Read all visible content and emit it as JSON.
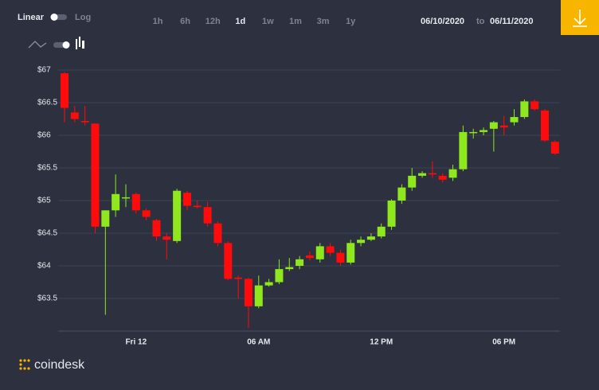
{
  "controls": {
    "scale": [
      "Linear",
      "Log"
    ],
    "ranges": [
      "1h",
      "6h",
      "12h",
      "1d",
      "1w",
      "1m",
      "3m",
      "1y"
    ],
    "active_range": "1d",
    "date_from": "06/10/2020",
    "date_sep": "to",
    "date_to": "06/11/2020"
  },
  "brand": "coindesk",
  "chart_data": {
    "type": "candlestick",
    "categories": [
      null,
      null,
      null,
      null,
      null,
      null,
      null,
      "Fri 12",
      null,
      null,
      null,
      null,
      null,
      null,
      null,
      null,
      null,
      null,
      null,
      "06 AM",
      null,
      null,
      null,
      null,
      null,
      null,
      null,
      null,
      null,
      null,
      null,
      "12 PM",
      null,
      null,
      null,
      null,
      null,
      null,
      null,
      null,
      null,
      null,
      null,
      "06 PM",
      null,
      null,
      null,
      null,
      null
    ],
    "open": [
      66.95,
      66.35,
      66.22,
      66.18,
      64.6,
      64.85,
      65.05,
      65.1,
      64.85,
      64.7,
      64.45,
      64.38,
      65.12,
      64.92,
      64.9,
      64.65,
      64.35,
      63.82,
      63.8,
      63.38,
      63.7,
      63.75,
      63.95,
      64.0,
      64.16,
      64.1,
      64.3,
      64.2,
      64.05,
      64.35,
      64.4,
      64.45,
      64.6,
      65.0,
      65.2,
      65.38,
      65.42,
      65.38,
      65.35,
      65.48,
      66.05,
      66.05,
      66.1,
      66.15,
      66.2,
      66.28,
      66.52,
      66.38,
      65.9
    ],
    "high": [
      66.97,
      66.45,
      66.45,
      66.18,
      64.85,
      65.4,
      65.25,
      65.12,
      64.88,
      64.72,
      64.5,
      65.18,
      65.15,
      65.0,
      64.98,
      64.68,
      64.38,
      63.85,
      63.82,
      63.85,
      63.8,
      64.1,
      64.12,
      64.15,
      64.22,
      64.35,
      64.35,
      64.25,
      64.4,
      64.45,
      64.5,
      64.65,
      65.02,
      65.25,
      65.5,
      65.45,
      65.6,
      65.42,
      65.55,
      66.15,
      66.1,
      66.12,
      66.22,
      66.3,
      66.4,
      66.55,
      66.55,
      66.4,
      65.92
    ],
    "low": [
      66.2,
      66.2,
      66.15,
      64.5,
      63.25,
      64.75,
      64.9,
      64.8,
      64.7,
      64.38,
      64.1,
      64.35,
      64.85,
      64.88,
      64.6,
      64.3,
      63.78,
      63.5,
      63.05,
      63.35,
      63.68,
      63.72,
      63.92,
      63.95,
      64.08,
      64.05,
      64.15,
      64.0,
      64.02,
      64.3,
      64.38,
      64.42,
      64.55,
      64.95,
      65.15,
      65.35,
      65.35,
      65.28,
      65.3,
      65.45,
      65.95,
      66.0,
      65.75,
      66.0,
      66.15,
      66.25,
      66.38,
      65.9,
      65.7
    ],
    "close": [
      66.42,
      66.25,
      66.2,
      64.6,
      64.85,
      65.1,
      65.05,
      64.85,
      64.75,
      64.45,
      64.4,
      65.15,
      64.92,
      64.9,
      64.65,
      64.35,
      63.8,
      63.8,
      63.38,
      63.7,
      63.75,
      63.95,
      63.98,
      64.1,
      64.12,
      64.3,
      64.2,
      64.05,
      64.35,
      64.4,
      64.45,
      64.6,
      65.0,
      65.2,
      65.38,
      65.42,
      65.4,
      65.32,
      65.48,
      66.05,
      66.05,
      66.08,
      66.2,
      66.12,
      66.28,
      66.52,
      66.4,
      65.92,
      65.72
    ],
    "up_color": "#8fe81e",
    "down_color": "#ff0b0b",
    "ylim": [
      63,
      67
    ],
    "yticks": [
      {
        "value": 63.5,
        "label": "$63.5"
      },
      {
        "value": 64,
        "label": "$64"
      },
      {
        "value": 64.5,
        "label": "$64.5"
      },
      {
        "value": 65,
        "label": "$65"
      },
      {
        "value": 65.5,
        "label": "$65.5"
      },
      {
        "value": 66,
        "label": "$66"
      },
      {
        "value": 66.5,
        "label": "$66.5"
      },
      {
        "value": 67,
        "label": "$67"
      }
    ],
    "grid": true
  }
}
